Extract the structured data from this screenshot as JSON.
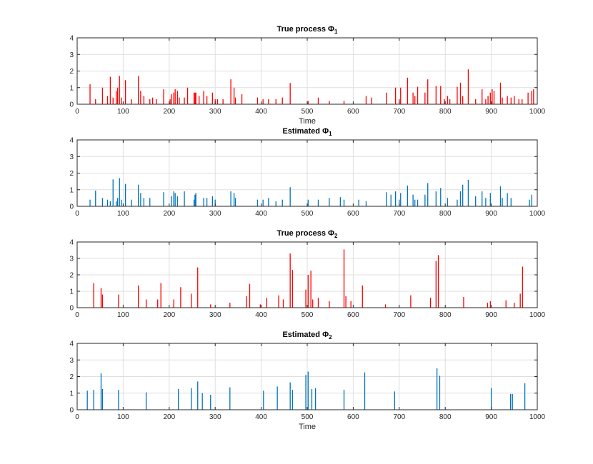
{
  "chart_data": [
    {
      "type": "bar",
      "title": "True process Φ",
      "title_sub": "1",
      "xlabel": "Time",
      "xlim": [
        0,
        1000
      ],
      "ylim": [
        0,
        4
      ],
      "xticks": [
        0,
        100,
        200,
        300,
        400,
        500,
        600,
        700,
        800,
        900,
        1000
      ],
      "yticks": [
        0,
        1,
        2,
        3,
        4
      ],
      "grid": true,
      "color": "#ff0000",
      "series": [
        {
          "name": "True process Φ_1",
          "x": [
            28,
            40,
            55,
            66,
            72,
            78,
            85,
            88,
            92,
            96,
            105,
            118,
            133,
            138,
            145,
            158,
            164,
            172,
            188,
            202,
            205,
            210,
            213,
            218,
            222,
            233,
            240,
            254,
            256,
            258,
            265,
            275,
            282,
            294,
            300,
            305,
            317,
            334,
            341,
            344,
            358,
            392,
            404,
            416,
            432,
            446,
            463,
            502,
            524,
            548,
            580,
            628,
            640,
            672,
            692,
            700,
            703,
            718,
            730,
            734,
            740,
            756,
            762,
            780,
            790,
            798,
            805,
            810,
            826,
            833,
            838,
            850,
            866,
            880,
            888,
            893,
            898,
            902,
            906,
            920,
            924,
            935,
            943,
            950,
            960,
            967,
            980,
            988,
            992
          ],
          "values": [
            1.2,
            0.3,
            1.0,
            0.5,
            1.65,
            0.4,
            0.8,
            1.0,
            1.7,
            0.4,
            1.45,
            0.3,
            1.7,
            0.8,
            0.5,
            0.3,
            0.4,
            0.3,
            0.9,
            0.3,
            0.6,
            0.7,
            0.9,
            0.8,
            0.4,
            0.4,
            1.0,
            0.7,
            0.7,
            0.7,
            0.5,
            0.8,
            0.5,
            0.7,
            0.3,
            0.3,
            0.3,
            1.5,
            1.0,
            0.4,
            0.6,
            0.4,
            0.3,
            0.3,
            0.3,
            0.4,
            1.28,
            0.2,
            0.4,
            0.2,
            0.2,
            0.5,
            0.4,
            0.7,
            1.0,
            0.3,
            1.0,
            1.6,
            0.7,
            0.5,
            1.05,
            0.7,
            1.5,
            1.1,
            1.1,
            0.3,
            0.5,
            0.3,
            1.05,
            1.3,
            0.5,
            2.1,
            0.3,
            0.9,
            0.3,
            0.5,
            0.7,
            0.9,
            0.8,
            1.3,
            0.4,
            0.5,
            0.4,
            0.5,
            0.3,
            0.3,
            0.7,
            0.8,
            0.9
          ]
        }
      ]
    },
    {
      "type": "bar",
      "title": "Estimated Φ",
      "title_sub": "1",
      "xlabel": "",
      "xlim": [
        0,
        1000
      ],
      "ylim": [
        0,
        4
      ],
      "xticks": [
        0,
        100,
        200,
        300,
        400,
        500,
        600,
        700,
        800,
        900,
        1000
      ],
      "yticks": [
        0,
        1,
        2,
        3,
        4
      ],
      "grid": true,
      "color": "#0072bd",
      "series": [
        {
          "name": "Estimated Φ_1",
          "x": [
            28,
            40,
            55,
            66,
            72,
            78,
            85,
            88,
            92,
            96,
            105,
            118,
            133,
            138,
            145,
            158,
            188,
            205,
            210,
            213,
            218,
            233,
            254,
            256,
            258,
            275,
            282,
            294,
            300,
            334,
            341,
            344,
            392,
            404,
            416,
            432,
            446,
            463,
            502,
            524,
            548,
            572,
            580,
            612,
            628,
            672,
            682,
            692,
            700,
            703,
            718,
            730,
            734,
            740,
            756,
            762,
            780,
            790,
            805,
            826,
            833,
            838,
            850,
            866,
            880,
            888,
            898,
            920,
            924,
            935,
            943,
            983,
            988
          ],
          "values": [
            0.4,
            0.95,
            0.5,
            0.4,
            0.3,
            1.62,
            0.3,
            0.5,
            1.7,
            0.4,
            1.35,
            0.4,
            1.3,
            0.8,
            0.5,
            0.5,
            0.85,
            0.6,
            0.9,
            0.8,
            0.6,
            0.9,
            0.4,
            0.7,
            0.8,
            0.5,
            0.5,
            0.6,
            0.4,
            0.9,
            0.8,
            0.5,
            0.4,
            0.4,
            0.5,
            0.3,
            0.4,
            1.15,
            0.4,
            0.4,
            0.5,
            0.55,
            0.4,
            0.4,
            0.3,
            0.85,
            0.7,
            0.9,
            0.4,
            0.8,
            1.25,
            0.7,
            0.4,
            0.4,
            0.7,
            1.4,
            0.9,
            1.1,
            0.5,
            0.4,
            0.9,
            1.3,
            1.6,
            0.6,
            0.9,
            0.5,
            0.8,
            1.2,
            0.5,
            0.8,
            0.5,
            0.4,
            0.7
          ]
        }
      ]
    },
    {
      "type": "bar",
      "title": "True process Φ",
      "title_sub": "2",
      "xlabel": "",
      "xlim": [
        0,
        1000
      ],
      "ylim": [
        0,
        4
      ],
      "xticks": [
        0,
        100,
        200,
        300,
        400,
        500,
        600,
        700,
        800,
        900,
        1000
      ],
      "yticks": [
        0,
        1,
        2,
        3,
        4
      ],
      "grid": true,
      "color": "#ff0000",
      "series": [
        {
          "name": "True process Φ_2",
          "x": [
            36,
            52,
            55,
            90,
            133,
            150,
            175,
            182,
            210,
            225,
            248,
            262,
            290,
            332,
            368,
            375,
            398,
            412,
            438,
            448,
            463,
            468,
            497,
            502,
            508,
            512,
            524,
            548,
            580,
            584,
            595,
            620,
            670,
            725,
            768,
            780,
            785,
            840,
            892,
            898,
            932,
            950,
            963,
            968
          ],
          "values": [
            1.5,
            1.2,
            0.8,
            0.8,
            1.35,
            0.5,
            0.5,
            1.5,
            0.5,
            1.25,
            0.85,
            2.45,
            0.2,
            0.3,
            0.7,
            1.45,
            0.2,
            0.6,
            0.75,
            0.5,
            3.3,
            2.3,
            1.1,
            2.0,
            2.25,
            0.5,
            0.6,
            0.4,
            3.55,
            0.7,
            0.4,
            1.35,
            0.2,
            0.75,
            0.6,
            2.85,
            3.2,
            0.65,
            0.3,
            0.4,
            0.45,
            0.3,
            0.85,
            2.5
          ]
        }
      ]
    },
    {
      "type": "bar",
      "title": "Estimated Φ",
      "title_sub": "2",
      "xlabel": "Time",
      "xlim": [
        0,
        1000
      ],
      "ylim": [
        0,
        4
      ],
      "xticks": [
        0,
        100,
        200,
        300,
        400,
        500,
        600,
        700,
        800,
        900,
        1000
      ],
      "yticks": [
        0,
        1,
        2,
        3,
        4
      ],
      "grid": true,
      "color": "#0072bd",
      "series": [
        {
          "name": "Estimated Φ_2",
          "x": [
            22,
            36,
            52,
            55,
            90,
            150,
            220,
            248,
            262,
            272,
            290,
            332,
            405,
            435,
            463,
            468,
            497,
            502,
            510,
            518,
            580,
            625,
            690,
            782,
            788,
            900,
            942,
            946,
            973
          ],
          "values": [
            1.15,
            1.2,
            2.2,
            1.25,
            1.2,
            1.05,
            1.25,
            1.3,
            1.7,
            1.0,
            0.9,
            1.35,
            1.15,
            1.4,
            1.65,
            1.2,
            2.1,
            2.3,
            1.25,
            1.3,
            1.2,
            2.25,
            1.1,
            2.5,
            2.05,
            1.3,
            0.95,
            0.95,
            1.6
          ]
        }
      ]
    }
  ]
}
